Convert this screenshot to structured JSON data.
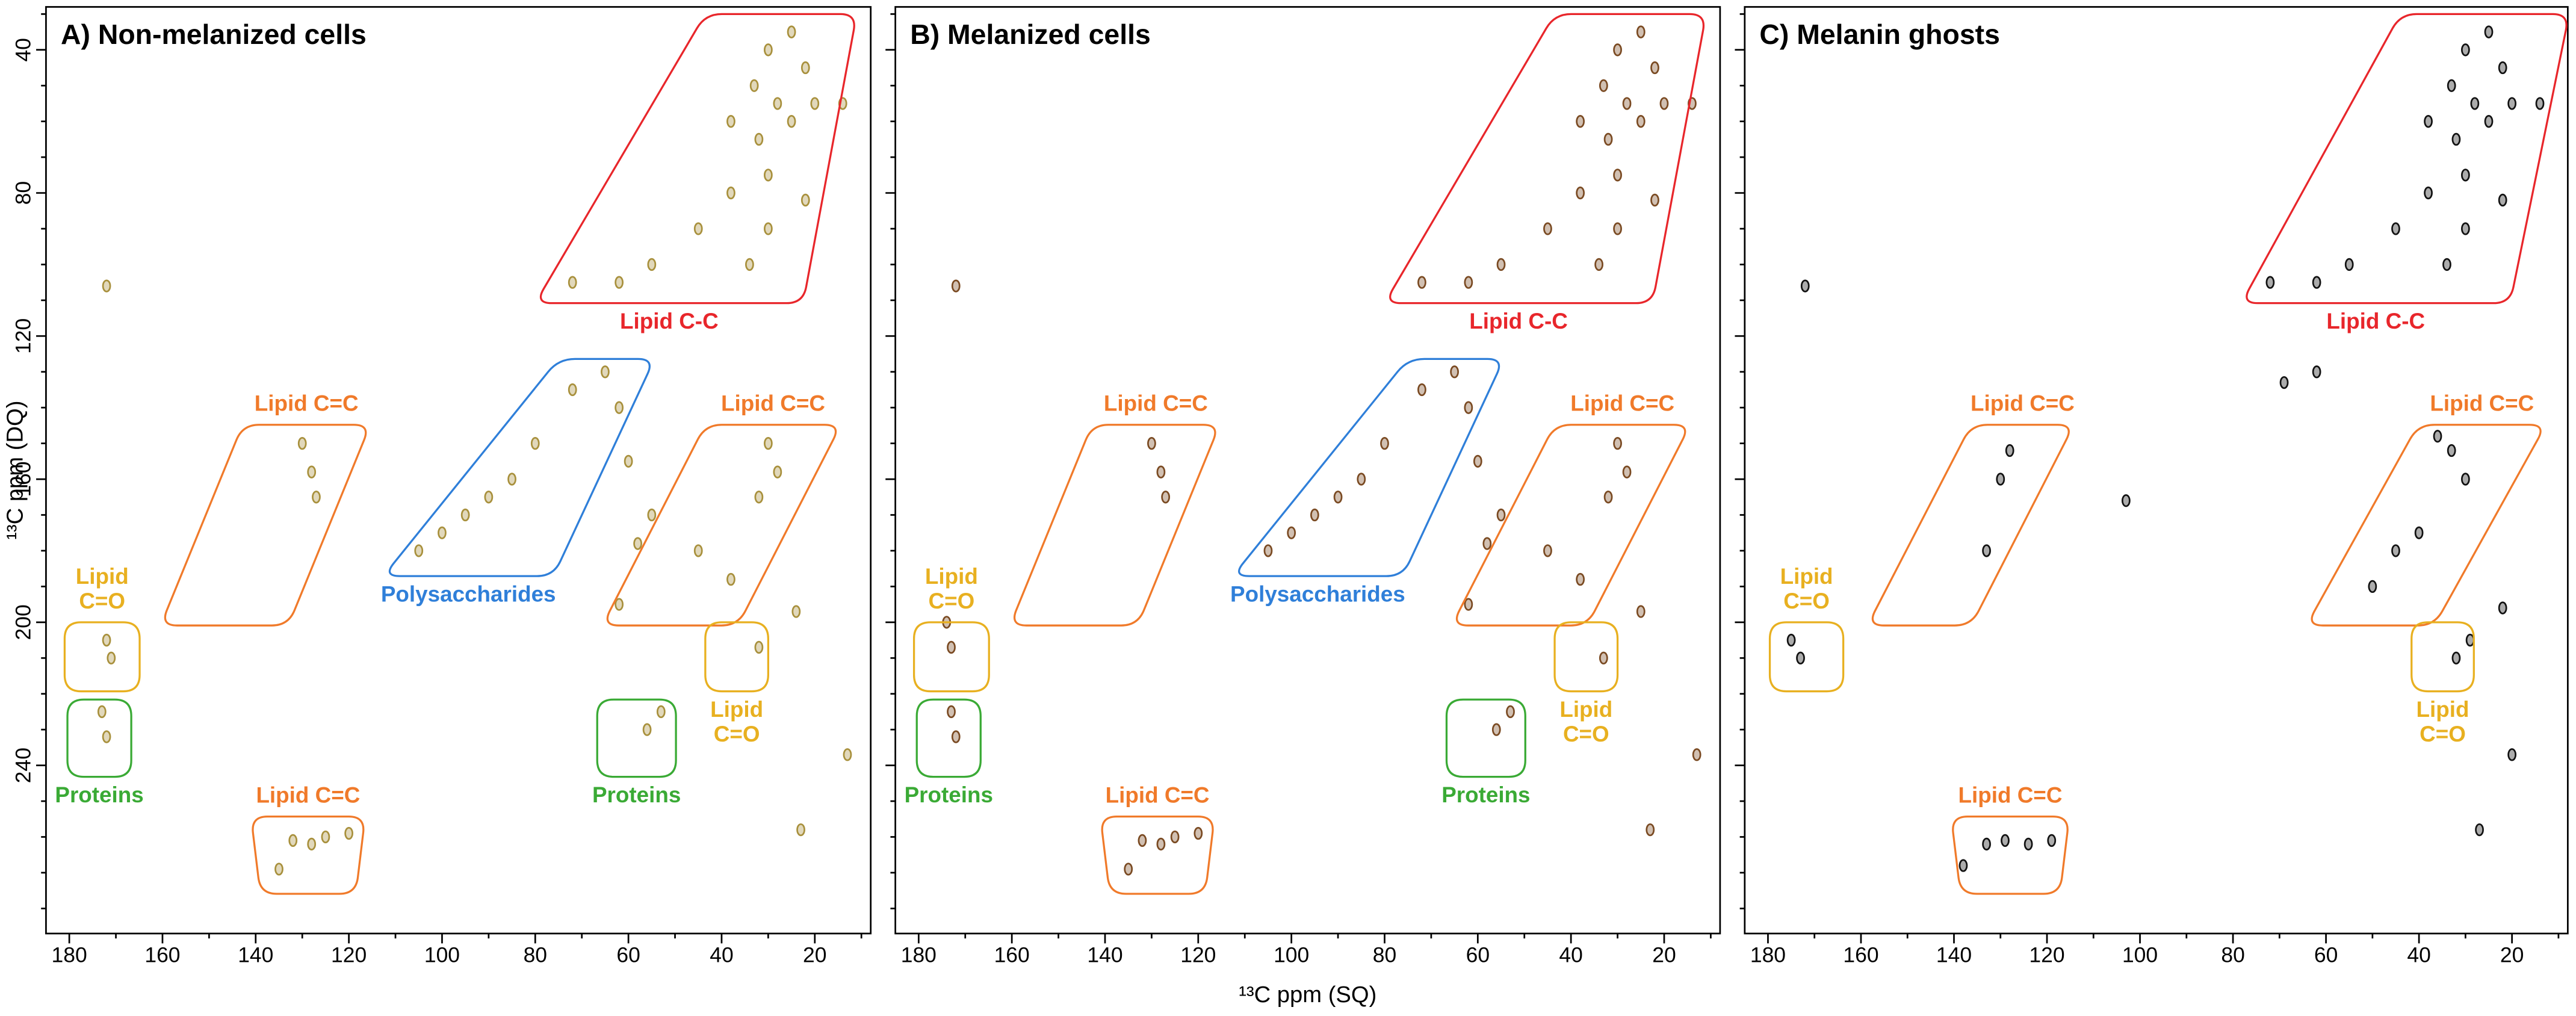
{
  "chart_data": [
    {
      "type": "scatter",
      "title": "A) Non-melanized cells",
      "ylabel": "¹³C ppm (DQ)",
      "color": "#a8903c",
      "xlim": [
        185,
        8
      ],
      "ylim": [
        28,
        287
      ],
      "xticks": [
        180,
        160,
        140,
        120,
        100,
        80,
        60,
        40,
        20
      ],
      "yticks": [
        40,
        80,
        120,
        160,
        200,
        240
      ],
      "xminor": [
        170,
        150,
        130,
        110,
        90,
        70,
        50,
        30,
        10
      ],
      "yminor": [
        30,
        50,
        60,
        70,
        90,
        100,
        110,
        130,
        140,
        150,
        170,
        180,
        190,
        210,
        220,
        230,
        250,
        260,
        270,
        280
      ],
      "ytick_labels": true,
      "x": [
        30,
        25,
        22,
        33,
        28,
        38,
        32,
        25,
        20,
        14,
        30,
        38,
        22,
        45,
        30,
        55,
        34,
        72,
        62,
        172,
        130,
        128,
        127,
        105,
        100,
        90,
        80,
        72,
        65,
        62,
        60,
        55,
        58,
        95,
        85,
        30,
        28,
        32,
        45,
        38,
        62,
        172,
        171,
        32,
        24,
        173,
        172,
        56,
        53,
        132,
        128,
        125,
        120,
        135,
        23,
        13
      ],
      "y": [
        40,
        35,
        45,
        50,
        55,
        60,
        65,
        60,
        55,
        55,
        75,
        80,
        82,
        90,
        90,
        100,
        100,
        105,
        105,
        106,
        150,
        158,
        165,
        180,
        175,
        165,
        150,
        135,
        130,
        140,
        155,
        170,
        178,
        170,
        160,
        150,
        158,
        165,
        180,
        188,
        195,
        205,
        210,
        207,
        197,
        225,
        232,
        230,
        225,
        261,
        262,
        260,
        259,
        269,
        258,
        237
      ],
      "regions": [
        {
          "label": [
            "Lipid C-C"
          ],
          "color": "#e8262b",
          "side": "below",
          "x": [
            43.5,
            11,
            22.5,
            80
          ],
          "y": [
            30,
            30,
            110.8,
            110.8
          ]
        },
        {
          "label": [
            "Lipid C=C"
          ],
          "color": "#f07a2a",
          "side": "above",
          "x": [
            142.8,
            115.4,
            133,
            160.4
          ],
          "y": [
            144.8,
            144.8,
            200.9,
            200.9
          ]
        },
        {
          "label": [
            "Polysaccharides"
          ],
          "color": "#2f7fd9",
          "side": "below",
          "x": [
            75,
            54.4,
            76.1,
            112.6
          ],
          "y": [
            126.4,
            126.4,
            187.1,
            187.1
          ]
        },
        {
          "label": [
            "Lipid C=C"
          ],
          "color": "#f07a2a",
          "side": "above",
          "x": [
            43.5,
            14.4,
            36.5,
            65.6
          ],
          "y": [
            144.8,
            144.8,
            200.9,
            200.9
          ]
        },
        {
          "label": [
            "Lipid",
            "C=O"
          ],
          "color": "#e8b020",
          "side": "above",
          "x": [
            181,
            164.9,
            164.9,
            181
          ],
          "y": [
            200,
            200,
            219.3,
            219.3
          ]
        },
        {
          "label": [
            "Lipid",
            "C=O"
          ],
          "color": "#e8b020",
          "side": "below",
          "x": [
            43.5,
            30,
            30,
            43.5
          ],
          "y": [
            200,
            200,
            219.3,
            219.3
          ]
        },
        {
          "label": [
            "Proteins"
          ],
          "color": "#3aaa35",
          "side": "below",
          "x": [
            180.4,
            166.7,
            166.7,
            180.4
          ],
          "y": [
            221.6,
            221.6,
            243.2,
            243.2
          ]
        },
        {
          "label": [
            "Proteins"
          ],
          "color": "#3aaa35",
          "side": "below",
          "x": [
            66.7,
            49.8,
            49.8,
            66.7
          ],
          "y": [
            221.6,
            221.6,
            243.2,
            243.2
          ]
        },
        {
          "label": [
            "Lipid C=C"
          ],
          "color": "#f07a2a",
          "side": "above",
          "x": [
            141,
            116.5,
            118.5,
            139
          ],
          "y": [
            254.3,
            254.3,
            275.9,
            275.9
          ]
        }
      ]
    },
    {
      "type": "scatter",
      "title": "B) Melanized cells",
      "xlabel": "¹³C ppm (SQ)",
      "color": "#7a4a22",
      "xlim": [
        185,
        8
      ],
      "ylim": [
        28,
        287
      ],
      "xticks": [
        180,
        160,
        140,
        120,
        100,
        80,
        60,
        40,
        20
      ],
      "yticks": [
        40,
        80,
        120,
        160,
        200,
        240
      ],
      "xminor": [
        170,
        150,
        130,
        110,
        90,
        70,
        50,
        30,
        10
      ],
      "yminor": [
        30,
        50,
        60,
        70,
        90,
        100,
        110,
        130,
        140,
        150,
        170,
        180,
        190,
        210,
        220,
        230,
        250,
        260,
        270,
        280
      ],
      "ytick_labels": false,
      "x": [
        30,
        25,
        22,
        33,
        28,
        38,
        32,
        25,
        20,
        14,
        30,
        38,
        22,
        45,
        30,
        55,
        34,
        72,
        62,
        172,
        130,
        128,
        127,
        105,
        100,
        90,
        80,
        72,
        65,
        62,
        60,
        55,
        58,
        95,
        85,
        30,
        28,
        32,
        45,
        38,
        62,
        174,
        173,
        33,
        25,
        173,
        172,
        56,
        53,
        132,
        128,
        125,
        120,
        135,
        23,
        13
      ],
      "y": [
        40,
        35,
        45,
        50,
        55,
        60,
        65,
        60,
        55,
        55,
        75,
        80,
        82,
        90,
        90,
        100,
        100,
        105,
        105,
        106,
        150,
        158,
        165,
        180,
        175,
        165,
        150,
        135,
        130,
        140,
        155,
        170,
        178,
        170,
        160,
        150,
        158,
        165,
        180,
        188,
        195,
        200,
        207,
        210,
        197,
        225,
        232,
        230,
        225,
        261,
        262,
        260,
        259,
        269,
        258,
        237
      ],
      "regions": [
        {
          "label": [
            "Lipid C-C"
          ],
          "color": "#e8262b",
          "side": "below",
          "x": [
            43.5,
            11,
            22.5,
            80
          ],
          "y": [
            30,
            30,
            110.8,
            110.8
          ]
        },
        {
          "label": [
            "Lipid C=C"
          ],
          "color": "#f07a2a",
          "side": "above",
          "x": [
            142.8,
            115.4,
            133,
            160.4
          ],
          "y": [
            144.8,
            144.8,
            200.9,
            200.9
          ]
        },
        {
          "label": [
            "Polysaccharides"
          ],
          "color": "#2f7fd9",
          "side": "below",
          "x": [
            75,
            54.4,
            76.1,
            112.6
          ],
          "y": [
            126.4,
            126.4,
            187.1,
            187.1
          ]
        },
        {
          "label": [
            "Lipid C=C"
          ],
          "color": "#f07a2a",
          "side": "above",
          "x": [
            43.5,
            14.4,
            36.5,
            65.6
          ],
          "y": [
            144.8,
            144.8,
            200.9,
            200.9
          ]
        },
        {
          "label": [
            "Lipid",
            "C=O"
          ],
          "color": "#e8b020",
          "side": "above",
          "x": [
            181,
            164.9,
            164.9,
            181
          ],
          "y": [
            200,
            200,
            219.3,
            219.3
          ]
        },
        {
          "label": [
            "Lipid",
            "C=O"
          ],
          "color": "#e8b020",
          "side": "below",
          "x": [
            43.5,
            30,
            30,
            43.5
          ],
          "y": [
            200,
            200,
            219.3,
            219.3
          ]
        },
        {
          "label": [
            "Proteins"
          ],
          "color": "#3aaa35",
          "side": "below",
          "x": [
            180.4,
            166.7,
            166.7,
            180.4
          ],
          "y": [
            221.6,
            221.6,
            243.2,
            243.2
          ]
        },
        {
          "label": [
            "Proteins"
          ],
          "color": "#3aaa35",
          "side": "below",
          "x": [
            66.7,
            49.8,
            49.8,
            66.7
          ],
          "y": [
            221.6,
            221.6,
            243.2,
            243.2
          ]
        },
        {
          "label": [
            "Lipid C=C"
          ],
          "color": "#f07a2a",
          "side": "above",
          "x": [
            141,
            116.5,
            118.5,
            139
          ],
          "y": [
            254.3,
            254.3,
            275.9,
            275.9
          ]
        }
      ]
    },
    {
      "type": "scatter",
      "title": "C) Melanin ghosts",
      "color": "#111111",
      "xlim": [
        185,
        8
      ],
      "ylim": [
        28,
        287
      ],
      "xticks": [
        180,
        160,
        140,
        120,
        100,
        80,
        60,
        40,
        20
      ],
      "yticks": [
        40,
        80,
        120,
        160,
        200,
        240
      ],
      "xminor": [
        170,
        150,
        130,
        110,
        90,
        70,
        50,
        30,
        10
      ],
      "yminor": [
        30,
        50,
        60,
        70,
        90,
        100,
        110,
        130,
        140,
        150,
        170,
        180,
        190,
        210,
        220,
        230,
        250,
        260,
        270,
        280
      ],
      "ytick_labels": false,
      "x": [
        30,
        25,
        22,
        33,
        28,
        38,
        32,
        25,
        20,
        14,
        30,
        38,
        22,
        45,
        30,
        55,
        34,
        72,
        62,
        69,
        62,
        103,
        172,
        29,
        32,
        22,
        133,
        129,
        124,
        119,
        138,
        27,
        40,
        45,
        50,
        33,
        30,
        36,
        128,
        130,
        133,
        20,
        175,
        173
      ],
      "y": [
        40,
        35,
        45,
        50,
        55,
        60,
        65,
        60,
        55,
        55,
        75,
        80,
        82,
        90,
        90,
        100,
        100,
        105,
        105,
        133,
        130,
        166,
        106,
        205,
        210,
        196,
        262,
        261,
        262,
        261,
        268,
        258,
        175,
        180,
        190,
        152,
        160,
        148,
        152,
        160,
        180,
        237,
        205,
        210
      ],
      "regions": [
        {
          "label": [
            "Lipid C-C"
          ],
          "color": "#e8262b",
          "side": "below",
          "x": [
            44,
            7.7,
            20.4,
            78.2
          ],
          "y": [
            30,
            30,
            110.8,
            110.8
          ]
        },
        {
          "label": [
            "Lipid C=C"
          ],
          "color": "#f07a2a",
          "side": "above",
          "x": [
            136.3,
            114.2,
            136.3,
            158.6
          ],
          "y": [
            144.8,
            144.8,
            200.9,
            200.9
          ]
        },
        {
          "label": [
            "Lipid C=C"
          ],
          "color": "#f07a2a",
          "side": "above",
          "x": [
            40.2,
            12.7,
            36.7,
            64.2
          ],
          "y": [
            144.8,
            144.8,
            200.9,
            200.9
          ]
        },
        {
          "label": [
            "Lipid",
            "C=O"
          ],
          "color": "#e8b020",
          "side": "above",
          "x": [
            179.6,
            163.8,
            163.8,
            179.6
          ],
          "y": [
            200,
            200,
            219.3,
            219.3
          ]
        },
        {
          "label": [
            "Lipid",
            "C=O"
          ],
          "color": "#e8b020",
          "side": "below",
          "x": [
            41.6,
            28.2,
            28.2,
            41.6
          ],
          "y": [
            200,
            200,
            219.3,
            219.3
          ]
        },
        {
          "label": [
            "Lipid C=C"
          ],
          "color": "#f07a2a",
          "side": "above",
          "x": [
            140.6,
            115.2,
            117.2,
            138.6
          ],
          "y": [
            254.3,
            254.3,
            275.9,
            275.9
          ]
        }
      ]
    }
  ]
}
